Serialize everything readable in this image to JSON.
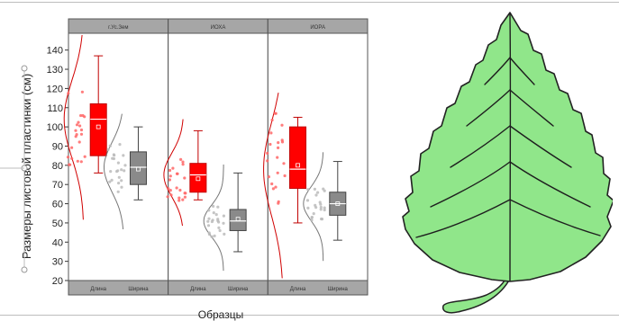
{
  "figure": {
    "y_axis_title": "Размеры листовой пластинки (см)",
    "x_axis_title": "Образцы",
    "leaf_illustration": "birch-leaf"
  },
  "colors": {
    "red_box": "#ff0000",
    "red_outline": "#c00000",
    "red_points": "#ff6666",
    "gray_box": "#8a8a8a",
    "gray_outline": "#444444",
    "gray_points": "#bbbbbb",
    "header_bar": "#a6a6a6",
    "leaf_fill": "#90e68a",
    "leaf_outline": "#222222"
  },
  "chart_data": {
    "type": "box",
    "ylim": [
      20,
      145
    ],
    "yticks": [
      20,
      30,
      40,
      50,
      60,
      70,
      80,
      90,
      100,
      110,
      120,
      130,
      140
    ],
    "panels": [
      {
        "header": "г.Ус.Зем",
        "groups": [
          {
            "label": "Длина",
            "color": "red",
            "min": 76,
            "q1": 85,
            "median": 104,
            "q3": 112,
            "max": 137,
            "mean": 100
          },
          {
            "label": "Ширина",
            "color": "gray",
            "min": 62,
            "q1": 70,
            "median": 79,
            "q3": 87,
            "max": 100,
            "mean": 78
          }
        ]
      },
      {
        "header": "ИОХА",
        "groups": [
          {
            "label": "Длина",
            "color": "red",
            "min": 62,
            "q1": 66,
            "median": 75,
            "q3": 81,
            "max": 98,
            "mean": 73
          },
          {
            "label": "Ширина",
            "color": "gray",
            "min": 35,
            "q1": 46,
            "median": 51,
            "q3": 57,
            "max": 76,
            "mean": 52
          }
        ]
      },
      {
        "header": "ИОРА",
        "groups": [
          {
            "label": "Длина",
            "color": "red",
            "min": 50,
            "q1": 68,
            "median": 78,
            "q3": 100,
            "max": 105,
            "mean": 80
          },
          {
            "label": "Ширина",
            "color": "gray",
            "min": 41,
            "q1": 54,
            "median": 60,
            "q3": 66,
            "max": 82,
            "mean": 60
          }
        ]
      }
    ]
  }
}
